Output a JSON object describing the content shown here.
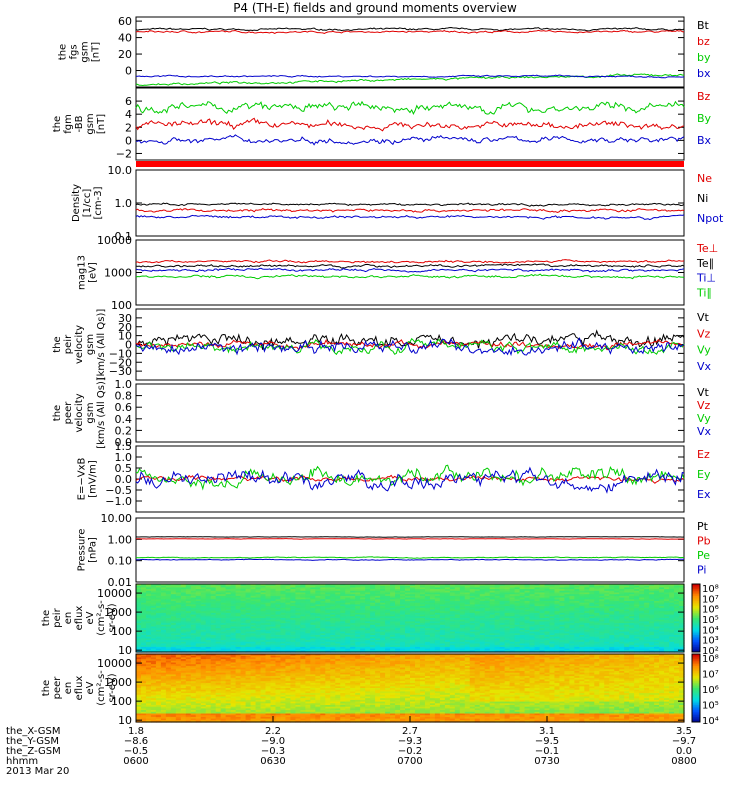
{
  "title": "P4 (TH-E) fields and ground moments overview",
  "colors": {
    "black": "#000000",
    "red": "#e00000",
    "green": "#00cc00",
    "blue": "#0000cc",
    "axis": "#000000"
  },
  "chart_data": [
    {
      "type": "line",
      "ylabel": [
        "the",
        "fgs",
        "gsm",
        "[nT]"
      ],
      "ylim": [
        -20,
        65
      ],
      "ticks": [
        "60",
        "40",
        "20",
        "0"
      ],
      "series": [
        {
          "name": "Bt",
          "color": "black",
          "level": 50,
          "noise": 1
        },
        {
          "name": "bz",
          "color": "red",
          "level": 47,
          "noise": 1
        },
        {
          "name": "by",
          "color": "green",
          "level": -17,
          "noise": 1.2,
          "trendTo": -5
        },
        {
          "name": "bx",
          "color": "blue",
          "level": -7,
          "noise": 0.8
        }
      ]
    },
    {
      "type": "line",
      "ylabel": [
        "the",
        "fgm",
        "-BB",
        "gsm",
        "[nT]"
      ],
      "ylim": [
        -3,
        8
      ],
      "ticks": [
        "6",
        "4",
        "2",
        "0",
        "−2"
      ],
      "series": [
        {
          "name": "Bz",
          "color": "red",
          "level": 2.3,
          "noise": 0.5
        },
        {
          "name": "By",
          "color": "green",
          "level": 5,
          "noise": 0.6
        },
        {
          "name": "Bx",
          "color": "blue",
          "level": 0.1,
          "noise": 0.4
        }
      ]
    },
    {
      "type": "line",
      "ylabel": [
        "Density",
        "[1/cc]",
        "[cm-3]"
      ],
      "ylim": [
        0.1,
        10
      ],
      "log": true,
      "ticks": [
        "10.0",
        "1.0",
        "0.1"
      ],
      "series": [
        {
          "name": "Ne",
          "color": "red",
          "level": 0.6,
          "noise": 0.05
        },
        {
          "name": "Ni",
          "color": "black",
          "level": 0.9,
          "noise": 0.06
        },
        {
          "name": "Npot",
          "color": "blue",
          "level": 0.38,
          "noise": 0.03
        }
      ]
    },
    {
      "type": "line",
      "ylabel": [
        "mag13",
        "[eV]"
      ],
      "ylim": [
        100,
        10000
      ],
      "log": true,
      "ticks": [
        "10000",
        "1000",
        "100"
      ],
      "series": [
        {
          "name": "Te⊥",
          "color": "red",
          "level": 2200,
          "noise": 150
        },
        {
          "name": "Te∥",
          "color": "black",
          "level": 1600,
          "noise": 120
        },
        {
          "name": "Ti⊥",
          "color": "blue",
          "level": 1200,
          "noise": 90
        },
        {
          "name": "Ti∥",
          "color": "green",
          "level": 750,
          "noise": 60
        }
      ]
    },
    {
      "type": "line",
      "ylabel": [
        "the",
        "peir",
        "velocity",
        "gsm",
        "[km/s (All Qs)]"
      ],
      "ylim": [
        -40,
        40
      ],
      "ticks": [
        "30",
        "20",
        "10",
        "0",
        "−10",
        "−20",
        "−30"
      ],
      "series": [
        {
          "name": "Vt",
          "color": "black",
          "level": 5,
          "noise": 6
        },
        {
          "name": "Vz",
          "color": "red",
          "level": 0,
          "noise": 3
        },
        {
          "name": "Vy",
          "color": "green",
          "level": -2,
          "noise": 5
        },
        {
          "name": "Vx",
          "color": "blue",
          "level": -3,
          "noise": 6
        }
      ]
    },
    {
      "type": "line",
      "ylabel": [
        "the",
        "peer",
        "velocity",
        "gsm",
        "[km/s (All Qs)]"
      ],
      "ylim": [
        0,
        1
      ],
      "ticks": [
        "1.0",
        "0.8",
        "0.6",
        "0.4",
        "0.2",
        "0.0"
      ],
      "series": [
        {
          "name": "Vt",
          "color": "black"
        },
        {
          "name": "Vz",
          "color": "red"
        },
        {
          "name": "Vy",
          "color": "green"
        },
        {
          "name": "Vx",
          "color": "blue"
        }
      ]
    },
    {
      "type": "line",
      "ylabel": [
        "E=−VxB",
        "[mV/m]"
      ],
      "ylim": [
        -1.5,
        1.5
      ],
      "ticks": [
        "1.5",
        "1.0",
        "0.5",
        "0.0",
        "−0.5",
        "−1.0"
      ],
      "series": [
        {
          "name": "Ez",
          "color": "red",
          "level": 0,
          "noise": 0.1
        },
        {
          "name": "Ey",
          "color": "green",
          "level": 0.1,
          "noise": 0.3
        },
        {
          "name": "Ex",
          "color": "blue",
          "level": -0.1,
          "noise": 0.3
        }
      ]
    },
    {
      "type": "line",
      "ylabel": [
        "Pressure",
        "[nPa]"
      ],
      "ylim": [
        0.01,
        10
      ],
      "log": true,
      "ticks": [
        "10.00",
        "1.00",
        "0.10",
        "0.01"
      ],
      "series": [
        {
          "name": "Pt",
          "color": "black",
          "level": 1.3,
          "noise": 0.02
        },
        {
          "name": "Pb",
          "color": "red",
          "level": 1.05,
          "noise": 0.02
        },
        {
          "name": "Pe",
          "color": "green",
          "level": 0.14,
          "noise": 0.005
        },
        {
          "name": "Pi",
          "color": "blue",
          "level": 0.11,
          "noise": 0.004
        }
      ]
    },
    {
      "type": "heatmap",
      "ylabel": [
        "the",
        "peir",
        "en",
        "eflux",
        "eV",
        "(cm²-s-",
        "sr-eV)"
      ],
      "ylim": [
        8,
        30000
      ],
      "log": true,
      "ticks": [
        "10000",
        "1000",
        "100",
        "10"
      ],
      "colorbar": [
        "10⁸",
        "10⁷",
        "10⁶",
        "10⁵",
        "10⁴",
        "10³",
        "10²"
      ]
    },
    {
      "type": "heatmap",
      "ylabel": [
        "the",
        "peer",
        "en",
        "eflux",
        "eV",
        "(cm²-s-",
        "sr-eV)"
      ],
      "ylim": [
        8,
        30000
      ],
      "log": true,
      "ticks": [
        "10000",
        "1000",
        "100",
        "10"
      ],
      "colorbar": [
        "10⁸",
        "10⁷",
        "10⁶",
        "10⁵",
        "10⁴"
      ]
    }
  ],
  "xaxis": {
    "rows": [
      {
        "label": "the_X-GSM",
        "values": [
          "1.8",
          "2.2",
          "2.7",
          "3.1",
          "3.5"
        ]
      },
      {
        "label": "the_Y-GSM",
        "values": [
          "−8.6",
          "−9.0",
          "−9.3",
          "−9.5",
          "−9.7"
        ]
      },
      {
        "label": "the_Z-GSM",
        "values": [
          "−0.5",
          "−0.3",
          "−0.2",
          "−0.1",
          "0.0"
        ]
      },
      {
        "label": "hhmm",
        "values": [
          "0600",
          "0630",
          "0700",
          "0730",
          "0800"
        ]
      }
    ],
    "date": "2013 Mar 20"
  }
}
